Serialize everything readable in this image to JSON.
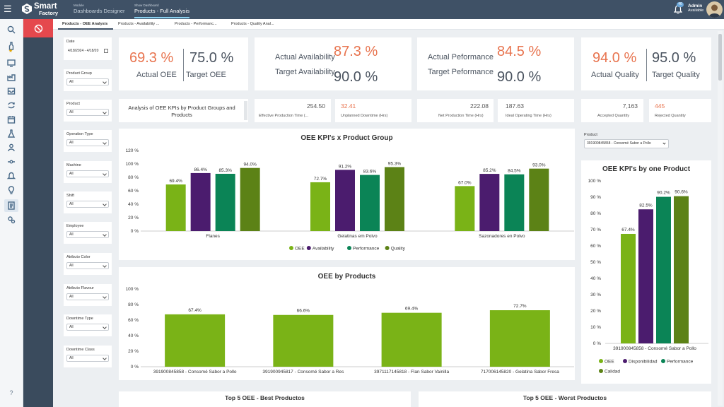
{
  "app": {
    "logo_line1": "Smart",
    "logo_line2": "Factory",
    "module_caption": "Module",
    "module_value": "Dashboards Designer",
    "dashboard_caption": "Show Dashboard",
    "dashboard_value": "Products - Full Analysis",
    "notifications_count": "46",
    "user_name": "Admin",
    "user_status": "Available"
  },
  "tabs": [
    {
      "label": "Products - OEE Analysis"
    },
    {
      "label": "Products - Availability ..."
    },
    {
      "label": "Products - Performanc..."
    },
    {
      "label": "Products - Quality Anal..."
    }
  ],
  "filters": {
    "date_label": "Date",
    "date_value": "4/18/2024 - 4/18/20",
    "items": [
      {
        "label": "Product Group",
        "value": "All"
      },
      {
        "label": "Product",
        "value": "All"
      },
      {
        "label": "Operation Type",
        "value": "All"
      },
      {
        "label": "Machine",
        "value": "All"
      },
      {
        "label": "Shift",
        "value": "All"
      },
      {
        "label": "Employee",
        "value": "All"
      },
      {
        "label": "Atributo Color",
        "value": "All"
      },
      {
        "label": "Atributo Flavour",
        "value": "All"
      },
      {
        "label": "Downtime Type",
        "value": "All"
      },
      {
        "label": "Downtime Class",
        "value": "All"
      }
    ]
  },
  "kpis": {
    "actual_oee": "69.3 %",
    "actual_oee_label": "Actual OEE",
    "target_oee": "75.0 %",
    "target_oee_label": "Target OEE",
    "actual_availability": "87.3 %",
    "actual_availability_label": "Actual Availability",
    "target_availability": "90.0 %",
    "target_availability_label": "Target Availability",
    "actual_performance": "84.5 %",
    "actual_performance_label": "Actual Peformance",
    "target_performance": "90.0 %",
    "target_performance_label": "Target Peformance",
    "actual_quality": "94.0 %",
    "actual_quality_label": "Actual Quality",
    "target_quality": "95.0 %",
    "target_quality_label": "Target Quality"
  },
  "analysis_text": "Analysis of OEE KPIs by Product Groups and Products",
  "metrics": {
    "effective_production_time": "254.50",
    "effective_production_time_label": "Effective Production Time (...",
    "unplanned_downtime": "32.41",
    "unplanned_downtime_label": "Unplanned Downtime (Hrs)",
    "net_production_time": "222.08",
    "net_production_time_label": "Net Production Time (Hrs)",
    "ideal_operating_time": "187.63",
    "ideal_operating_time_label": "Ideal Operating Time (Hrs)",
    "accepted_quantity": "7,163",
    "accepted_quantity_label": "Accepted Quantity",
    "rejected_quantity": "445",
    "rejected_quantity_label": "Rejected Quantity"
  },
  "product_selector": {
    "label": "Product",
    "value": "391900845858 - Consomé Sabor a Pollo"
  },
  "colors": {
    "oee": "#7ab317",
    "availability": "#4b1c6e",
    "performance": "#0b8456",
    "quality": "#5c8216",
    "orange": "#e8744f"
  },
  "bottom_titles": {
    "best": "Top 5 OEE - Best Productos",
    "worst": "Top 5 OEE - Worst Productos"
  },
  "chart_data": [
    {
      "id": "kpi-by-group",
      "type": "bar",
      "title": "OEE KPI's x Product Group",
      "categories": [
        "Flanes",
        "Gelatinas em Polvo",
        "Sazonadores en Polvo"
      ],
      "series": [
        {
          "name": "OEE",
          "color": "#7ab317",
          "values": [
            69.4,
            72.7,
            67.0
          ]
        },
        {
          "name": "Availability",
          "color": "#4b1c6e",
          "values": [
            86.4,
            91.2,
            85.2
          ]
        },
        {
          "name": "Performance",
          "color": "#0b8456",
          "values": [
            85.3,
            83.6,
            84.5
          ]
        },
        {
          "name": "Quality",
          "color": "#5c8216",
          "values": [
            94.0,
            95.3,
            93.0
          ]
        }
      ],
      "yticks": [
        "0 %",
        "20 %",
        "40 %",
        "60 %",
        "80 %",
        "100 %",
        "120 %"
      ],
      "ylim": [
        0,
        120
      ]
    },
    {
      "id": "oee-by-products",
      "type": "bar",
      "title": "OEE by Products",
      "categories": [
        "391900845858 - Consomé Sabor a Pollo",
        "391900945817 - Consomé Sabor a Res",
        "3971117145818 - Flan Sabor Vainilla",
        "717006145820 - Gelatina Sabor Fresa"
      ],
      "series": [
        {
          "name": "OEE",
          "color": "#7ab317",
          "values": [
            67.4,
            66.6,
            69.4,
            72.7
          ]
        }
      ],
      "yticks": [
        "0 %",
        "20 %",
        "40 %",
        "60 %",
        "80 %",
        "100 %"
      ],
      "ylim": [
        0,
        100
      ]
    },
    {
      "id": "kpi-one-product",
      "type": "bar",
      "title": "OEE KPI's by one Product",
      "categories": [
        "391900845858 - Consomé Sabor a Pollo"
      ],
      "series": [
        {
          "name": "OEE",
          "color": "#7ab317",
          "values": [
            67.4
          ]
        },
        {
          "name": "Disponibilidad",
          "color": "#4b1c6e",
          "values": [
            82.5
          ]
        },
        {
          "name": "Performance",
          "color": "#0b8456",
          "values": [
            90.2
          ]
        },
        {
          "name": "Calidad",
          "color": "#5c8216",
          "values": [
            90.6
          ]
        }
      ],
      "yticks": [
        "0 %",
        "10 %",
        "20 %",
        "30 %",
        "40 %",
        "50 %",
        "60 %",
        "70 %",
        "80 %",
        "90 %",
        "100 %"
      ],
      "ylim": [
        0,
        100
      ]
    }
  ]
}
